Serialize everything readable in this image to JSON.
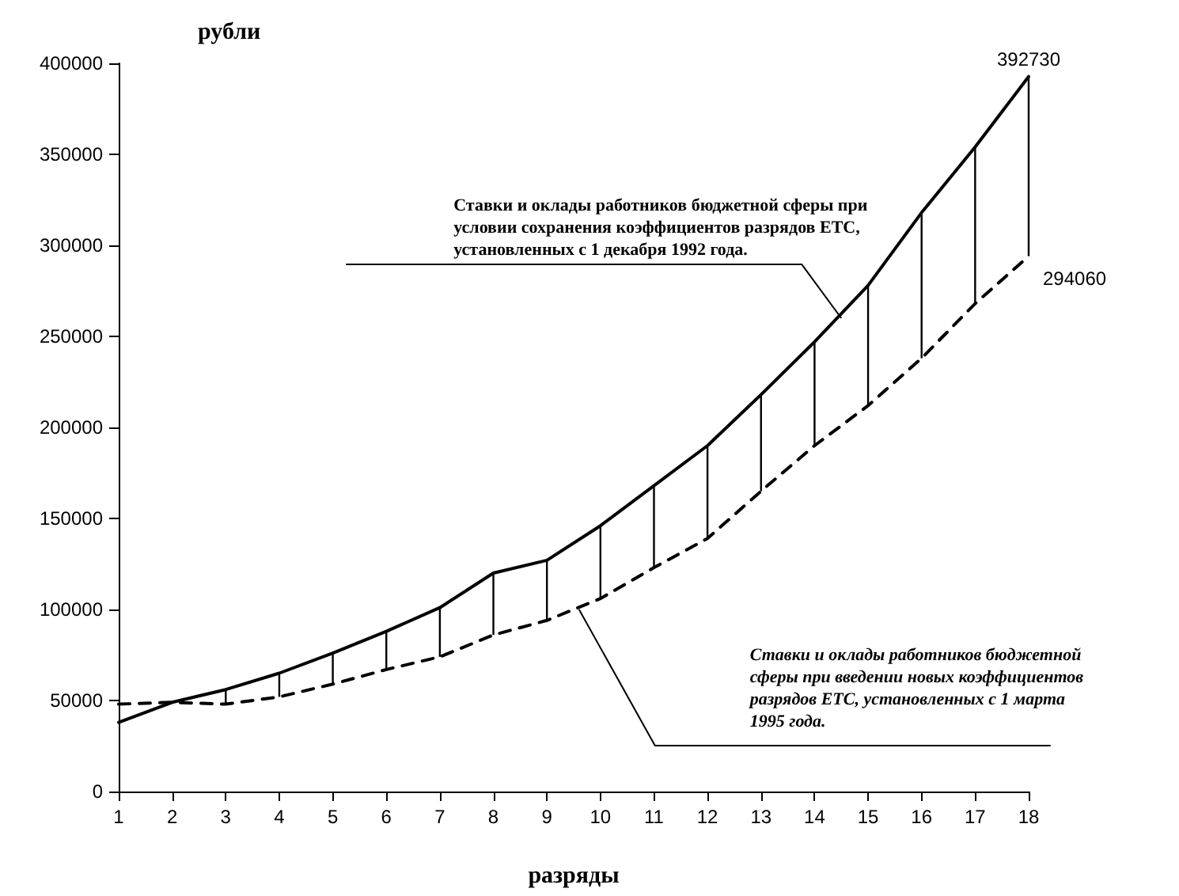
{
  "chart_data": {
    "type": "line",
    "xlabel": "разряды",
    "ylabel": "рубли",
    "x": [
      1,
      2,
      3,
      4,
      5,
      6,
      7,
      8,
      9,
      10,
      11,
      12,
      13,
      14,
      15,
      16,
      17,
      18
    ],
    "xlim": [
      1,
      18
    ],
    "xticks": [
      1,
      2,
      3,
      4,
      5,
      6,
      7,
      8,
      9,
      10,
      11,
      12,
      13,
      14,
      15,
      16,
      17,
      18
    ],
    "ylim": [
      0,
      400000
    ],
    "yticks": [
      0,
      50000,
      100000,
      150000,
      200000,
      250000,
      300000,
      350000,
      400000
    ],
    "grid": false,
    "marker": "none",
    "series": [
      {
        "line_style": "solid",
        "color": "#000000",
        "values": [
          38000,
          49000,
          56000,
          65000,
          76000,
          88000,
          101000,
          120000,
          127000,
          146000,
          168000,
          190000,
          218000,
          247000,
          278000,
          318000,
          354000,
          392730
        ],
        "value_labels": [
          null,
          null,
          null,
          null,
          null,
          null,
          null,
          null,
          null,
          null,
          null,
          null,
          null,
          null,
          null,
          null,
          null,
          "392730"
        ]
      },
      {
        "line_style": "dashed",
        "color": "#000000",
        "values": [
          48000,
          49000,
          48000,
          52000,
          59000,
          67000,
          74000,
          86000,
          94000,
          106000,
          123000,
          139000,
          165000,
          190000,
          212000,
          238000,
          268000,
          294060
        ],
        "value_labels": [
          null,
          null,
          null,
          null,
          null,
          null,
          null,
          null,
          null,
          null,
          null,
          null,
          null,
          null,
          null,
          null,
          null,
          "294060"
        ]
      },
      {
        "type": "bar",
        "color": "#000000",
        "base": [
          null,
          null,
          48000,
          52000,
          59000,
          67000,
          74000,
          86000,
          94000,
          106000,
          123000,
          139000,
          165000,
          190000,
          212000,
          238000,
          268000,
          294060
        ],
        "values": [
          null,
          null,
          8000,
          13000,
          17000,
          21000,
          27000,
          34000,
          33000,
          40000,
          45000,
          51000,
          53000,
          57000,
          66000,
          80000,
          86000,
          98670
        ]
      }
    ],
    "annotations": [
      {
        "text": "Ставки и оклады работников бюджетной сферы при условии сохранения коэффициентов разрядов ЕТС, установленных с 1 декабря 1992 года.",
        "x": 14.5,
        "y": 260000
      },
      {
        "text": "Ставки и оклады работников бюджетной сферы при введении новых коэффициентов разрядов ЕТС, установленных с 1 марта 1995 года.",
        "x": 9.6,
        "y": 100000
      }
    ]
  }
}
